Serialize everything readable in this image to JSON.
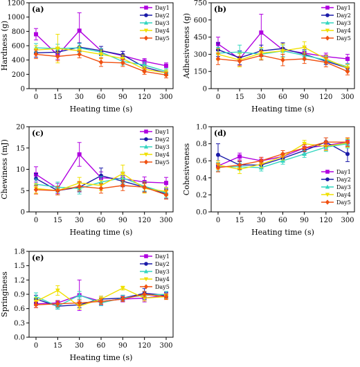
{
  "colors": {
    "Day1": "#b000e0",
    "Day2": "#1a1aa8",
    "Day3": "#33d6c0",
    "Day4": "#f0e000",
    "Day5": "#f05010"
  },
  "chart_data": [
    {
      "type": "line",
      "panel": "(a)",
      "xlabel": "Heating time (s)",
      "ylabel": "Hardness (g)",
      "categories": [
        "0",
        "15",
        "30",
        "60",
        "90",
        "120",
        "300"
      ],
      "ylim": [
        0,
        1200
      ],
      "yticks": [
        "0",
        "200",
        "400",
        "600",
        "800",
        "1000",
        "1200"
      ],
      "legend_position": "top-right",
      "series": [
        {
          "name": "Day1",
          "values": [
            760,
            470,
            810,
            530,
            460,
            380,
            320
          ],
          "errors": [
            80,
            60,
            250,
            60,
            60,
            40,
            40
          ]
        },
        {
          "name": "Day2",
          "values": [
            500,
            510,
            580,
            530,
            470,
            300,
            220
          ],
          "errors": [
            60,
            60,
            60,
            60,
            50,
            40,
            40
          ]
        },
        {
          "name": "Day3",
          "values": [
            570,
            560,
            570,
            510,
            380,
            330,
            240
          ],
          "errors": [
            60,
            60,
            60,
            50,
            50,
            40,
            40
          ]
        },
        {
          "name": "Day4",
          "values": [
            540,
            560,
            530,
            480,
            420,
            270,
            220
          ],
          "errors": [
            60,
            200,
            60,
            60,
            50,
            40,
            40
          ]
        },
        {
          "name": "Day5",
          "values": [
            480,
            450,
            480,
            370,
            360,
            240,
            190
          ],
          "errors": [
            60,
            60,
            50,
            60,
            50,
            40,
            40
          ]
        }
      ]
    },
    {
      "type": "line",
      "panel": "(b)",
      "xlabel": "Heating time (s)",
      "ylabel": "Adhesiveness (g)",
      "categories": [
        "0",
        "15",
        "30",
        "60",
        "90",
        "120",
        "300"
      ],
      "ylim": [
        0,
        750
      ],
      "yticks": [
        "0",
        "150",
        "300",
        "450",
        "600",
        "750"
      ],
      "legend_position": "top-right",
      "series": [
        {
          "name": "Day1",
          "values": [
            390,
            260,
            490,
            340,
            310,
            280,
            260
          ],
          "errors": [
            60,
            60,
            160,
            60,
            50,
            30,
            40
          ]
        },
        {
          "name": "Day2",
          "values": [
            340,
            270,
            330,
            350,
            300,
            240,
            180
          ],
          "errors": [
            60,
            60,
            50,
            50,
            40,
            30,
            30
          ]
        },
        {
          "name": "Day3",
          "values": [
            310,
            320,
            300,
            330,
            290,
            250,
            190
          ],
          "errors": [
            50,
            60,
            50,
            50,
            40,
            30,
            30
          ]
        },
        {
          "name": "Day4",
          "values": [
            300,
            250,
            310,
            330,
            360,
            260,
            180
          ],
          "errors": [
            50,
            60,
            50,
            60,
            50,
            30,
            30
          ]
        },
        {
          "name": "Day5",
          "values": [
            260,
            240,
            290,
            250,
            260,
            230,
            150
          ],
          "errors": [
            50,
            40,
            40,
            50,
            40,
            40,
            30
          ]
        }
      ]
    },
    {
      "type": "line",
      "panel": "(c)",
      "xlabel": "Heating time (s)",
      "ylabel": "Chewiness (mJ)",
      "categories": [
        "0",
        "15",
        "30",
        "60",
        "90",
        "120",
        "300"
      ],
      "ylim": [
        0,
        20
      ],
      "yticks": [
        "0",
        "5",
        "10",
        "15",
        "20"
      ],
      "legend_position": "top-right",
      "series": [
        {
          "name": "Day1",
          "values": [
            8.8,
            5.5,
            13.5,
            8.0,
            7.8,
            7.0,
            6.8
          ],
          "errors": [
            1.8,
            1.2,
            2.8,
            1.4,
            1.3,
            1.2,
            1.3
          ]
        },
        {
          "name": "Day2",
          "values": [
            7.8,
            5.0,
            5.8,
            8.5,
            7.2,
            5.8,
            4.2
          ],
          "errors": [
            1.2,
            1.0,
            1.1,
            1.8,
            1.3,
            1.1,
            1.1
          ]
        },
        {
          "name": "Day3",
          "values": [
            6.5,
            5.8,
            5.5,
            7.0,
            8.0,
            6.0,
            4.5
          ],
          "errors": [
            1.2,
            1.2,
            1.3,
            1.3,
            1.4,
            1.1,
            1.1
          ]
        },
        {
          "name": "Day4",
          "values": [
            5.5,
            5.0,
            6.8,
            6.2,
            9.0,
            5.5,
            4.8
          ],
          "errors": [
            1.1,
            1.0,
            1.3,
            1.2,
            2.0,
            1.1,
            1.0
          ]
        },
        {
          "name": "Day5",
          "values": [
            5.2,
            5.0,
            6.0,
            5.5,
            6.2,
            5.8,
            4.0
          ],
          "errors": [
            1.0,
            1.0,
            1.1,
            1.1,
            1.2,
            1.2,
            1.0
          ]
        }
      ]
    },
    {
      "type": "line",
      "panel": "(d)",
      "xlabel": "Heating time (s)",
      "ylabel": "Cohesiveness",
      "categories": [
        "0",
        "15",
        "30",
        "60",
        "90",
        "120",
        "300"
      ],
      "ylim": [
        0,
        1.0
      ],
      "yticks": [
        "0.0",
        "0.2",
        "0.4",
        "0.6",
        "0.8",
        "1.0"
      ],
      "legend_position": "bottom-right",
      "series": [
        {
          "name": "Day1",
          "values": [
            0.54,
            0.65,
            0.6,
            0.65,
            0.75,
            0.78,
            0.82
          ],
          "errors": [
            0.06,
            0.04,
            0.04,
            0.04,
            0.04,
            0.05,
            0.05
          ]
        },
        {
          "name": "Day2",
          "values": [
            0.67,
            0.55,
            0.55,
            0.63,
            0.72,
            0.82,
            0.68
          ],
          "errors": [
            0.13,
            0.04,
            0.04,
            0.04,
            0.04,
            0.05,
            0.09
          ]
        },
        {
          "name": "Day3",
          "values": [
            0.53,
            0.53,
            0.52,
            0.6,
            0.68,
            0.76,
            0.8
          ],
          "errors": [
            0.05,
            0.04,
            0.04,
            0.04,
            0.04,
            0.05,
            0.05
          ]
        },
        {
          "name": "Day4",
          "values": [
            0.55,
            0.5,
            0.56,
            0.65,
            0.8,
            0.77,
            0.81
          ],
          "errors": [
            0.05,
            0.05,
            0.04,
            0.04,
            0.04,
            0.05,
            0.05
          ]
        },
        {
          "name": "Day5",
          "values": [
            0.52,
            0.55,
            0.6,
            0.68,
            0.75,
            0.82,
            0.82
          ],
          "errors": [
            0.05,
            0.05,
            0.04,
            0.04,
            0.04,
            0.05,
            0.05
          ]
        }
      ]
    },
    {
      "type": "line",
      "panel": "(e)",
      "xlabel": "Heating time (s)",
      "ylabel": "Springiness",
      "categories": [
        "0",
        "15",
        "30",
        "60",
        "90",
        "120",
        "300"
      ],
      "ylim": [
        0,
        1.8
      ],
      "yticks": [
        "0.0",
        "0.3",
        "0.6",
        "0.9",
        "1.2",
        "1.5",
        "1.8"
      ],
      "legend_position": "top-right",
      "series": [
        {
          "name": "Day1",
          "values": [
            0.7,
            0.72,
            0.88,
            0.75,
            0.8,
            0.82,
            0.88
          ],
          "errors": [
            0.08,
            0.05,
            0.32,
            0.08,
            0.06,
            0.08,
            0.06
          ]
        },
        {
          "name": "Day2",
          "values": [
            0.8,
            0.65,
            0.68,
            0.8,
            0.82,
            0.92,
            0.88
          ],
          "errors": [
            0.08,
            0.06,
            0.06,
            0.06,
            0.06,
            0.1,
            0.06
          ]
        },
        {
          "name": "Day3",
          "values": [
            0.85,
            0.65,
            0.88,
            0.72,
            0.82,
            0.88,
            0.9
          ],
          "errors": [
            0.08,
            0.06,
            0.08,
            0.06,
            0.06,
            0.08,
            0.06
          ]
        },
        {
          "name": "Day4",
          "values": [
            0.75,
            0.98,
            0.65,
            0.8,
            1.03,
            0.82,
            0.85
          ],
          "errors": [
            0.08,
            0.1,
            0.06,
            0.06,
            0.04,
            0.06,
            0.05
          ]
        },
        {
          "name": "Day5",
          "values": [
            0.68,
            0.7,
            0.72,
            0.75,
            0.8,
            0.9,
            0.85
          ],
          "errors": [
            0.06,
            0.06,
            0.06,
            0.06,
            0.05,
            0.06,
            0.06
          ]
        }
      ]
    }
  ]
}
